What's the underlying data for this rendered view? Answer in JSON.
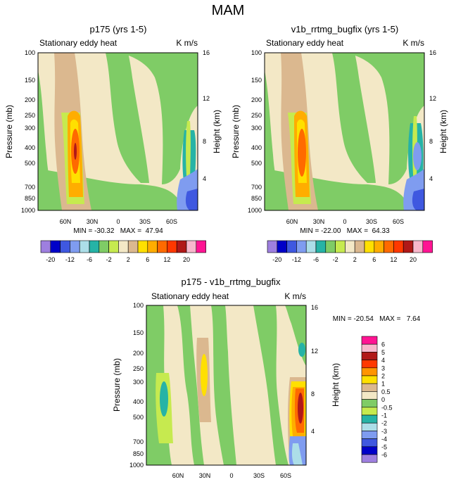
{
  "chart_data": {
    "type": "heatmap",
    "title": "MAM",
    "panels": [
      {
        "title": "p175 (yrs 1-5)",
        "subtitle_left": "Stationary eddy heat",
        "subtitle_right": "K m/s",
        "ylabel": "Pressure (mb)",
        "ylabel_right": "Height (km)",
        "x_ticks": [
          "60N",
          "30N",
          "0",
          "30S",
          "60S"
        ],
        "y_ticks": [
          "100",
          "150",
          "200",
          "250",
          "300",
          "400",
          "500",
          "700",
          "850",
          "1000"
        ],
        "y_ticks_right": [
          "16",
          "12",
          "8",
          "4"
        ],
        "min_max": "MIN = -30.32   MAX =  47.94"
      },
      {
        "title": "v1b_rrtmg_bugfix (yrs 1-5)",
        "subtitle_left": "Stationary eddy heat",
        "subtitle_right": "K m/s",
        "ylabel": "Pressure (mb)",
        "ylabel_right": "Height (km)",
        "x_ticks": [
          "60N",
          "30N",
          "0",
          "30S",
          "60S"
        ],
        "y_ticks": [
          "100",
          "150",
          "200",
          "250",
          "300",
          "400",
          "500",
          "700",
          "850",
          "1000"
        ],
        "y_ticks_right": [
          "16",
          "12",
          "8",
          "4"
        ],
        "min_max": "MIN = -22.00   MAX =  64.33"
      },
      {
        "title": "p175 - v1b_rrtmg_bugfix",
        "subtitle_left": "Stationary eddy heat",
        "subtitle_right": "K m/s",
        "ylabel": "Pressure (mb)",
        "ylabel_right": "Height (km)",
        "x_ticks": [
          "60N",
          "30N",
          "0",
          "30S",
          "60S"
        ],
        "y_ticks": [
          "100",
          "150",
          "200",
          "250",
          "300",
          "400",
          "500",
          "700",
          "850",
          "1000"
        ],
        "y_ticks_right": [
          "16",
          "12",
          "8",
          "4"
        ],
        "min_max": "MIN = -20.54   MAX =   7.64"
      }
    ],
    "colorbar_top": {
      "colors": [
        "#9e7fdf",
        "#0000c8",
        "#3f58e0",
        "#7f9cf0",
        "#acdee8",
        "#26b3a6",
        "#7fcc66",
        "#c6ea4f",
        "#f3e8c6",
        "#dbb88f",
        "#ffe000",
        "#ffad00",
        "#ff6a00",
        "#ff3800",
        "#b01818",
        "#f8b7cc",
        "#ff1493"
      ],
      "labels": [
        "-20",
        "-12",
        "-6",
        "-2",
        "2",
        "6",
        "12",
        "20"
      ]
    },
    "colorbar_diff": {
      "colors": [
        "#ff1493",
        "#f8b7cc",
        "#b01818",
        "#ff3800",
        "#ff9500",
        "#ffe000",
        "#dbb88f",
        "#f3e8c6",
        "#7fcc66",
        "#c6ea4f",
        "#26b3a6",
        "#acdee8",
        "#7f9cf0",
        "#3f58e0",
        "#0000c8",
        "#9e7fdf"
      ],
      "labels": [
        "6",
        "5",
        "4",
        "3",
        "2",
        "1",
        "0.5",
        "0",
        "-0.5",
        "-1",
        "-2",
        "-3",
        "-4",
        "-5",
        "-6"
      ]
    }
  }
}
